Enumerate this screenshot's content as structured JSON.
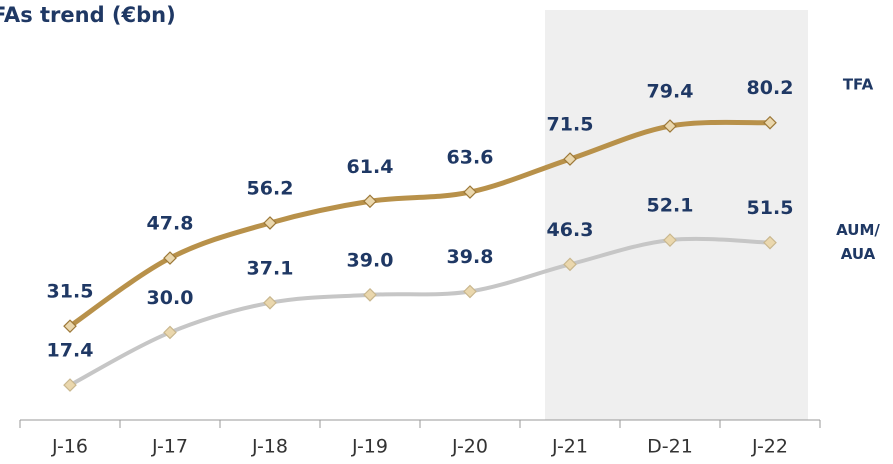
{
  "chart_data": {
    "type": "line",
    "title": "FAs trend (€bn)",
    "categories": [
      "J-16",
      "J-17",
      "J-18",
      "J-19",
      "J-20",
      "J-21",
      "D-21",
      "J-22"
    ],
    "series": [
      {
        "name": "TFA",
        "color": "#b8914a",
        "values": [
          31.5,
          47.8,
          56.2,
          61.4,
          63.6,
          71.5,
          79.4,
          80.2
        ],
        "value_labels": [
          "31.5",
          "47.8",
          "56.2",
          "61.4",
          "63.6",
          "71.5",
          "79.4",
          "80.2"
        ]
      },
      {
        "name": "AUM/AUA",
        "color": "#c6c6c6",
        "values": [
          17.4,
          30.0,
          37.1,
          39.0,
          39.8,
          46.3,
          52.1,
          51.5
        ],
        "value_labels": [
          "17.4",
          "30.0",
          "37.1",
          "39.0",
          "39.8",
          "46.3",
          "52.1",
          "51.5"
        ]
      }
    ],
    "ylim": [
      10,
      100
    ]
  }
}
